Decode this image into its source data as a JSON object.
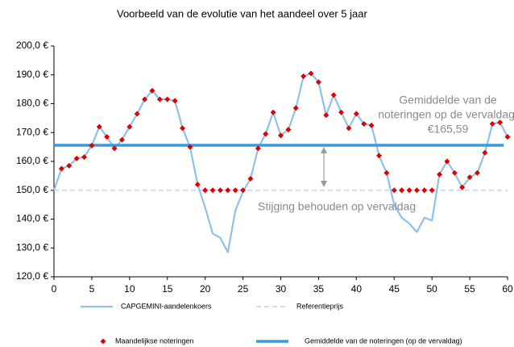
{
  "chart_data": {
    "type": "line",
    "title": "Voorbeeld van de evolutie van het aandeel over 5 jaar",
    "x": [
      0,
      1,
      2,
      3,
      4,
      5,
      6,
      7,
      8,
      9,
      10,
      11,
      12,
      13,
      14,
      15,
      16,
      17,
      18,
      19,
      20,
      21,
      22,
      23,
      24,
      25,
      26,
      27,
      28,
      29,
      30,
      31,
      32,
      33,
      34,
      35,
      36,
      37,
      38,
      39,
      40,
      41,
      42,
      43,
      44,
      45,
      46,
      47,
      48,
      49,
      50,
      51,
      52,
      53,
      54,
      55,
      56,
      57,
      58,
      59,
      60
    ],
    "series": [
      {
        "name": "CAPGEMINI-aandelenkoers",
        "color": "#8fc0ea",
        "style": "line",
        "values": [
          150,
          157.5,
          158.5,
          161,
          161.5,
          165.5,
          172,
          168.5,
          164.5,
          167.5,
          172,
          176.5,
          181.5,
          184.5,
          181.5,
          181.5,
          181,
          171.5,
          165,
          152,
          144,
          135,
          133.5,
          128.5,
          143,
          149.5,
          154,
          164.5,
          169.5,
          177,
          169,
          171,
          178.5,
          189.5,
          190.5,
          187.5,
          176,
          183,
          177,
          171.5,
          176.5,
          173,
          172.5,
          162,
          156,
          145,
          140.5,
          138.5,
          135.5,
          140.5,
          139.5,
          155.5,
          160,
          156,
          151,
          154.5,
          156,
          163,
          173,
          173.5,
          168.5
        ]
      },
      {
        "name": "Referentieprijs",
        "color": "#c9def2",
        "style": "dashed",
        "x": [
          0,
          60
        ],
        "values": [
          150,
          150
        ]
      },
      {
        "name": "Maandelijkse noteringen",
        "color": "#e00000",
        "style": "markers",
        "values": [
          null,
          157.5,
          158.5,
          161,
          161.5,
          165.5,
          172,
          168.5,
          164.5,
          167.5,
          172,
          176.5,
          181.5,
          184.5,
          181.5,
          181.5,
          181,
          171.5,
          165,
          152,
          150,
          150,
          150,
          150,
          150,
          150,
          154,
          164.5,
          169.5,
          177,
          169,
          171,
          178.5,
          189.5,
          190.5,
          187.5,
          176,
          183,
          177,
          171.5,
          176.5,
          173,
          172.5,
          162,
          156,
          150,
          150,
          150,
          150,
          150,
          150,
          155.5,
          160,
          156,
          151,
          154.5,
          156,
          163,
          173,
          173.5,
          168.5
        ]
      },
      {
        "name": "Gemiddelde van de noteringen (op de vervaldag)",
        "color": "#3a98dc",
        "style": "thick",
        "x": [
          0,
          59.5
        ],
        "values": [
          165.59,
          165.59
        ]
      }
    ],
    "xlim": [
      0,
      60
    ],
    "xticks": [
      0,
      5,
      10,
      15,
      20,
      25,
      30,
      35,
      40,
      45,
      50,
      55,
      60
    ],
    "ylim": [
      120,
      200
    ],
    "yticks": [
      {
        "value": 120,
        "label": "120,0 €"
      },
      {
        "value": 130,
        "label": "130,0 €"
      },
      {
        "value": 140,
        "label": "140,0 €"
      },
      {
        "value": 150,
        "label": "150,0 €"
      },
      {
        "value": 160,
        "label": "160,0 €"
      },
      {
        "value": 170,
        "label": "170,0 €"
      },
      {
        "value": 180,
        "label": "180,0 €"
      },
      {
        "value": 190,
        "label": "190,0 €"
      },
      {
        "value": 200,
        "label": "200,0 €"
      }
    ],
    "annotations": [
      {
        "lines": [
          "Gemiddelde van de",
          "noteringen op de vervaldag:",
          "€165,59"
        ]
      },
      {
        "lines": [
          "Stijging behouden op vervaldag"
        ]
      }
    ]
  }
}
